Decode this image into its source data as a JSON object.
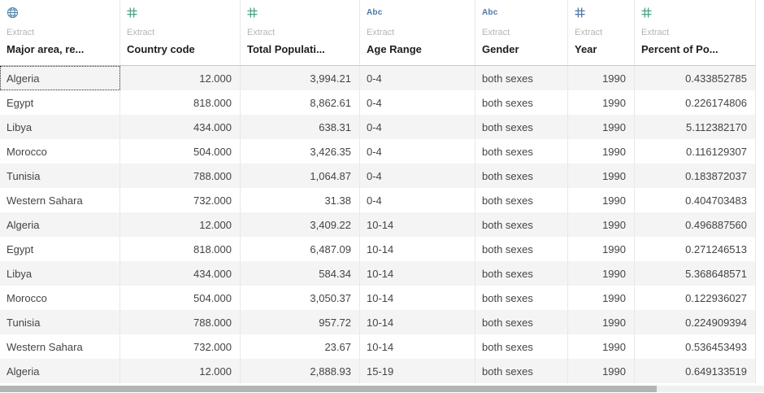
{
  "table": {
    "columns": [
      {
        "name": "Major area, re...",
        "source": "Extract",
        "icon": "globe-icon",
        "type": "geographic dimension"
      },
      {
        "name": "Country code",
        "source": "Extract",
        "icon": "hash-icon",
        "type": "continuous measure"
      },
      {
        "name": "Total Populati...",
        "source": "Extract",
        "icon": "hash-icon",
        "type": "continuous measure"
      },
      {
        "name": "Age Range",
        "source": "Extract",
        "icon": "abc-icon",
        "type": "string dimension",
        "icon_label": "Abc"
      },
      {
        "name": "Gender",
        "source": "Extract",
        "icon": "abc-icon",
        "type": "string dimension",
        "icon_label": "Abc"
      },
      {
        "name": "Year",
        "source": "Extract",
        "icon": "hash-icon",
        "type": "discrete number"
      },
      {
        "name": "Percent of Po...",
        "source": "Extract",
        "icon": "hash-icon",
        "type": "continuous measure"
      }
    ],
    "rows": [
      [
        "Algeria",
        "12.000",
        "3,994.21",
        "0-4",
        "both sexes",
        "1990",
        "0.433852785"
      ],
      [
        "Egypt",
        "818.000",
        "8,862.61",
        "0-4",
        "both sexes",
        "1990",
        "0.226174806"
      ],
      [
        "Libya",
        "434.000",
        "638.31",
        "0-4",
        "both sexes",
        "1990",
        "5.112382170"
      ],
      [
        "Morocco",
        "504.000",
        "3,426.35",
        "0-4",
        "both sexes",
        "1990",
        "0.116129307"
      ],
      [
        "Tunisia",
        "788.000",
        "1,064.87",
        "0-4",
        "both sexes",
        "1990",
        "0.183872037"
      ],
      [
        "Western Sahara",
        "732.000",
        "31.38",
        "0-4",
        "both sexes",
        "1990",
        "0.404703483"
      ],
      [
        "Algeria",
        "12.000",
        "3,409.22",
        "10-14",
        "both sexes",
        "1990",
        "0.496887560"
      ],
      [
        "Egypt",
        "818.000",
        "6,487.09",
        "10-14",
        "both sexes",
        "1990",
        "0.271246513"
      ],
      [
        "Libya",
        "434.000",
        "584.34",
        "10-14",
        "both sexes",
        "1990",
        "5.368648571"
      ],
      [
        "Morocco",
        "504.000",
        "3,050.37",
        "10-14",
        "both sexes",
        "1990",
        "0.122936027"
      ],
      [
        "Tunisia",
        "788.000",
        "957.72",
        "10-14",
        "both sexes",
        "1990",
        "0.224909394"
      ],
      [
        "Western Sahara",
        "732.000",
        "23.67",
        "10-14",
        "both sexes",
        "1990",
        "0.536453493"
      ],
      [
        "Algeria",
        "12.000",
        "2,888.93",
        "15-19",
        "both sexes",
        "1990",
        "0.649133519"
      ]
    ],
    "selected_cell": {
      "row": 0,
      "col": 0
    }
  },
  "scrollbar": {
    "thumb_percent": "86%"
  },
  "colors": {
    "dimension_blue": "#4d79a6",
    "measure_green": "#4fa383",
    "geo_globe_blue": "#4e87a8",
    "row_band_gray": "#f4f4f4",
    "extract_label_gray": "#b5b5b5",
    "scrollbar_thumb_gray": "#b4b4b4"
  }
}
